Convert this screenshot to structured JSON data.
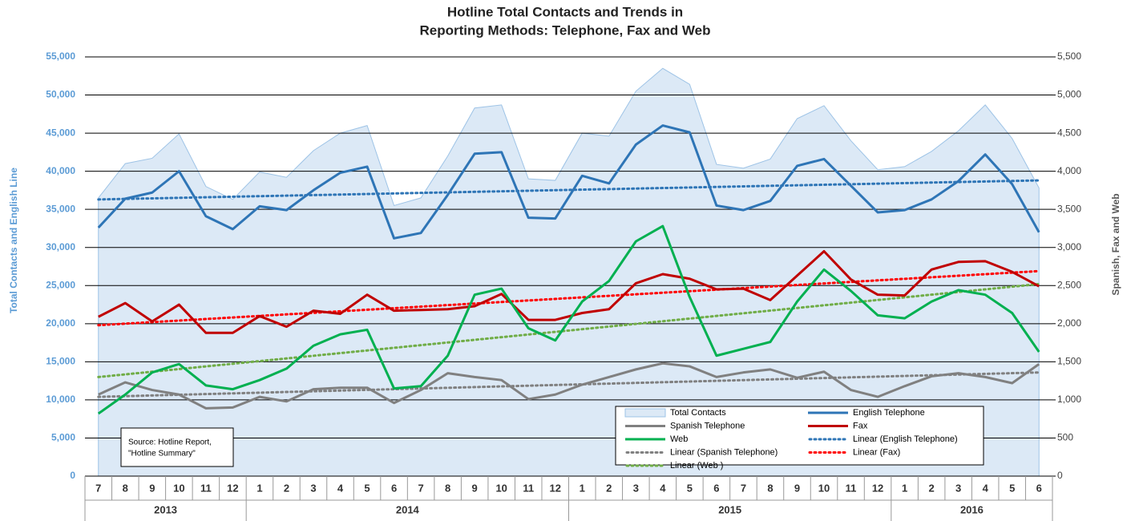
{
  "chart_data": {
    "type": "combo",
    "title": [
      "Hotline  Total Contacts and Trends in",
      "Reporting Methods: Telephone, Fax and Web"
    ],
    "y_label": "Total Contacts and English  Line",
    "y2_label": "Spanish, Fax and Web",
    "source": [
      "Source: Hotline Report,",
      "\"Hotline Summary\""
    ],
    "categories": [
      "7",
      "8",
      "9",
      "10",
      "11",
      "12",
      "1",
      "2",
      "3",
      "4",
      "5",
      "6",
      "7",
      "8",
      "9",
      "10",
      "11",
      "12",
      "1",
      "2",
      "3",
      "4",
      "5",
      "6",
      "7",
      "8",
      "9",
      "10",
      "11",
      "12",
      "1",
      "2",
      "3",
      "4",
      "5",
      "6"
    ],
    "x_groups": [
      {
        "label": "2013",
        "span": 6
      },
      {
        "label": "2014",
        "span": 12
      },
      {
        "label": "2015",
        "span": 12
      },
      {
        "label": "2016",
        "span": 6
      }
    ],
    "ylim": [
      0,
      55000
    ],
    "yticks": [
      0,
      {
        "value": 5000,
        "label": "5,000"
      },
      {
        "value": 10000,
        "label": "10,000"
      },
      {
        "value": 15000,
        "label": "15,000"
      },
      {
        "value": 20000,
        "label": "20,000"
      },
      {
        "value": 25000,
        "label": "25,000"
      },
      {
        "value": 30000,
        "label": "30,000"
      },
      {
        "value": 35000,
        "label": "35,000"
      },
      {
        "value": 40000,
        "label": "40,000"
      },
      {
        "value": 45000,
        "label": "45,000"
      },
      {
        "value": 50000,
        "label": "50,000"
      },
      {
        "value": 55000,
        "label": "55,000"
      }
    ],
    "y2lim": [
      0,
      5500
    ],
    "y2ticks": [
      0,
      500,
      {
        "value": 1000,
        "label": "1,000"
      },
      {
        "value": 1500,
        "label": "1,500"
      },
      {
        "value": 2000,
        "label": "2,000"
      },
      {
        "value": 2500,
        "label": "2,500"
      },
      {
        "value": 3000,
        "label": "3,000"
      },
      {
        "value": 3500,
        "label": "3,500"
      },
      {
        "value": 4000,
        "label": "4,000"
      },
      {
        "value": 4500,
        "label": "4,500"
      },
      {
        "value": 5000,
        "label": "5,000"
      },
      {
        "value": 5500,
        "label": "5,500"
      }
    ],
    "grid": true,
    "series": [
      {
        "name": "Total Contacts",
        "type": "area",
        "color": "#9dc3e6",
        "fill": "#dce9f6",
        "axis": "y",
        "values": [
          36500,
          41000,
          41700,
          44900,
          38000,
          36300,
          39900,
          39200,
          42700,
          45000,
          46000,
          35500,
          36500,
          42000,
          48300,
          48700,
          39000,
          38800,
          45000,
          44600,
          50500,
          53500,
          51400,
          40900,
          40400,
          41600,
          46900,
          48600,
          44000,
          40200,
          40600,
          42600,
          45300,
          48700,
          44300,
          37800
        ]
      },
      {
        "name": "English Telephone",
        "type": "line",
        "color": "#2e75b6",
        "axis": "y",
        "values": [
          32600,
          36400,
          37200,
          40000,
          34100,
          32400,
          35400,
          34900,
          37500,
          39800,
          40600,
          31200,
          31900,
          36900,
          42300,
          42500,
          33900,
          33800,
          39400,
          38400,
          43500,
          46000,
          45100,
          35500,
          34900,
          36100,
          40700,
          41600,
          38100,
          34600,
          34900,
          36300,
          38700,
          42200,
          38300,
          32000
        ]
      },
      {
        "name": "Spanish Telephone",
        "type": "line",
        "color": "#808080",
        "axis": "y2",
        "values": [
          1070,
          1230,
          1130,
          1070,
          890,
          900,
          1040,
          980,
          1140,
          1160,
          1160,
          960,
          1130,
          1350,
          1300,
          1260,
          1010,
          1070,
          1200,
          1300,
          1400,
          1480,
          1440,
          1300,
          1360,
          1400,
          1290,
          1370,
          1130,
          1040,
          1180,
          1310,
          1350,
          1300,
          1220,
          1470
        ]
      },
      {
        "name": "Fax",
        "type": "line",
        "color": "#c00000",
        "axis": "y2",
        "values": [
          2090,
          2270,
          2030,
          2250,
          1880,
          1880,
          2100,
          1960,
          2170,
          2130,
          2380,
          2170,
          2180,
          2190,
          2230,
          2390,
          2050,
          2050,
          2140,
          2190,
          2530,
          2650,
          2590,
          2450,
          2460,
          2310,
          2630,
          2950,
          2580,
          2380,
          2370,
          2710,
          2810,
          2820,
          2680,
          2490
        ]
      },
      {
        "name": "Web",
        "type": "line",
        "color": "#00b050",
        "axis": "y2",
        "values": [
          820,
          1070,
          1360,
          1470,
          1190,
          1140,
          1260,
          1410,
          1710,
          1860,
          1920,
          1150,
          1180,
          1580,
          2380,
          2460,
          1940,
          1780,
          2290,
          2560,
          3080,
          3280,
          2350,
          1580,
          1670,
          1760,
          2290,
          2710,
          2430,
          2110,
          2070,
          2290,
          2440,
          2380,
          2140,
          1630
        ]
      }
    ],
    "trendlines": [
      {
        "name": "Linear (English Telephone)",
        "color": "#2e75b6",
        "axis": "y",
        "values": [
          36300,
          38800
        ]
      },
      {
        "name": "Linear (Spanish Telephone)",
        "color": "#808080",
        "axis": "y2",
        "values": [
          1040,
          1360
        ]
      },
      {
        "name": "Linear (Fax)",
        "color": "#ff0000",
        "axis": "y2",
        "values": [
          1980,
          2690
        ]
      },
      {
        "name": "Linear (Web )",
        "color": "#70ad47",
        "axis": "y2",
        "values": [
          1300,
          2520
        ]
      }
    ]
  }
}
